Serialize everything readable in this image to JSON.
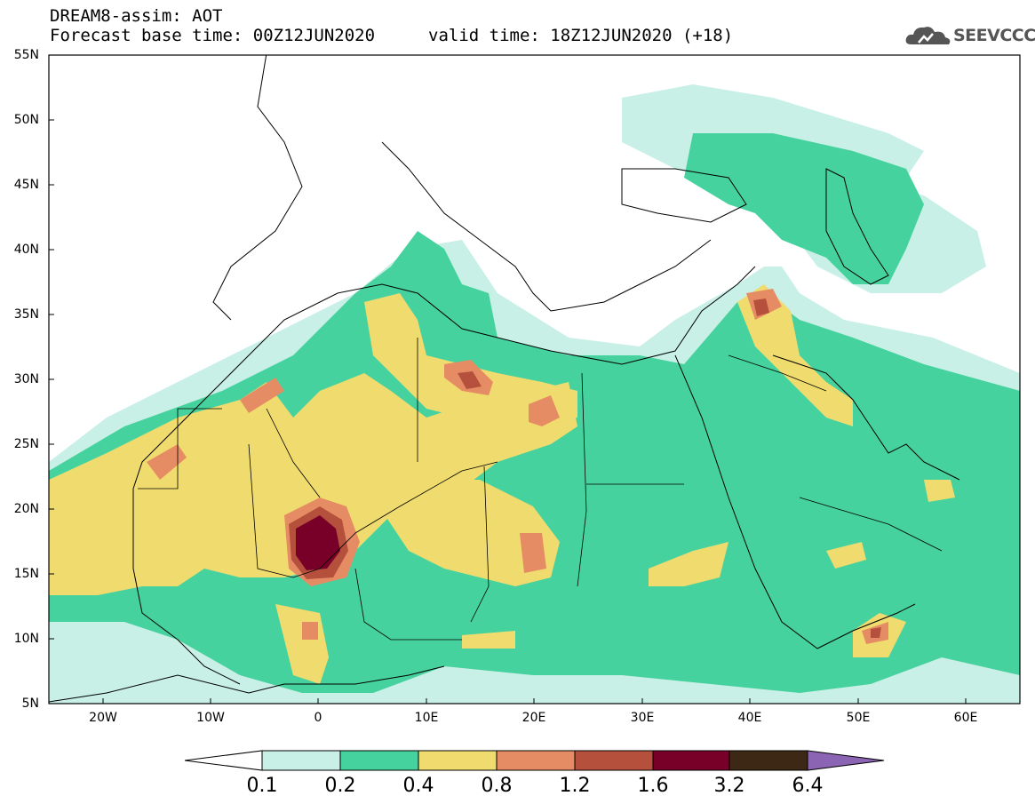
{
  "header": {
    "title_line1": "DREAM8-assim: AOT",
    "title_line2": "Forecast base time: 00Z12JUN2020",
    "valid_time": "valid time: 18Z12JUN2020 (+18)",
    "logo_text": "SEEVCCC",
    "logo_icon": "cloud-icon"
  },
  "map": {
    "extent": {
      "lon": [
        -25,
        65
      ],
      "lat": [
        5,
        55
      ]
    },
    "lat_labels": [
      "5N",
      "10N",
      "15N",
      "20N",
      "25N",
      "30N",
      "35N",
      "40N",
      "45N",
      "50N",
      "55N"
    ],
    "lon_labels": [
      "20W",
      "10W",
      "0",
      "10E",
      "20E",
      "30E",
      "40E",
      "50E",
      "60E"
    ],
    "field": "AOT"
  },
  "colorbar": {
    "labels": [
      "0.1",
      "0.2",
      "0.4",
      "0.8",
      "1.2",
      "1.6",
      "3.2",
      "6.4"
    ],
    "colors": [
      "#ffffff",
      "#c8f0e6",
      "#46d29e",
      "#f0dc6e",
      "#e68c64",
      "#b4503c",
      "#780028",
      "#3c2814",
      "#8c64b4"
    ]
  }
}
